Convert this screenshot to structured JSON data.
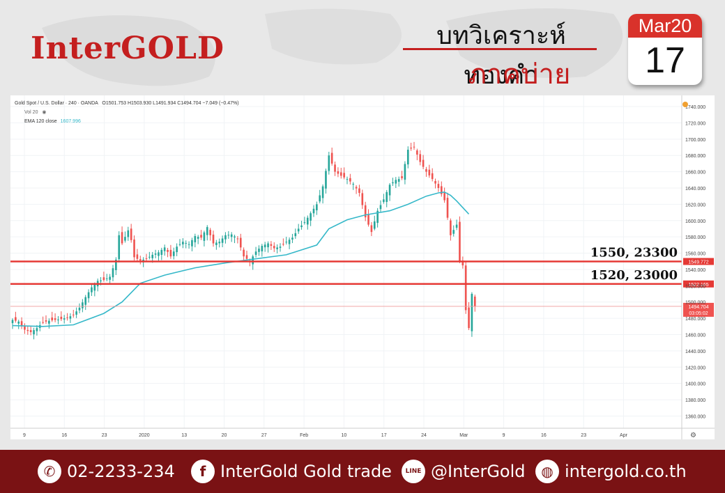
{
  "header": {
    "brand": "InterGOLD",
    "title_line1": "บทวิเคราะห์ทองคำ",
    "title_line2": "ภาคบ่าย",
    "calendar_month": "Mar20",
    "calendar_day": "17"
  },
  "legend": {
    "symbol": "Gold Spot / U.S. Dollar · 240 · OANDA",
    "ohlc": "O1501.753 H1503.930 L1491.934 C1494.704 −7.049 (−0.47%)",
    "volume": "Vol 20",
    "ema_label": "EMA 120 close",
    "ema_value": "1607.996"
  },
  "chart_data": {
    "type": "candlestick",
    "x_ticks": [
      "9",
      "16",
      "23",
      "2020",
      "13",
      "20",
      "27",
      "Feb",
      "10",
      "17",
      "24",
      "Mar",
      "9",
      "16",
      "23",
      "Apr"
    ],
    "y_ticks": [
      "1740.000",
      "1720.000",
      "1700.000",
      "1680.000",
      "1660.000",
      "1640.000",
      "1620.000",
      "1600.000",
      "1580.000",
      "1560.000",
      "1540.000",
      "1520.000",
      "1500.000",
      "1480.000",
      "1460.000",
      "1440.000",
      "1420.000",
      "1400.000",
      "1380.000",
      "1360.000"
    ],
    "ylim": [
      1345,
      1752
    ],
    "close_path": [
      [
        0,
        1478
      ],
      [
        2,
        1476
      ],
      [
        4,
        1466
      ],
      [
        6,
        1463
      ],
      [
        8,
        1468
      ],
      [
        10,
        1475
      ],
      [
        12,
        1477
      ],
      [
        14,
        1478
      ],
      [
        16,
        1479
      ],
      [
        18,
        1481
      ],
      [
        20,
        1484
      ],
      [
        22,
        1493
      ],
      [
        24,
        1506
      ],
      [
        26,
        1518
      ],
      [
        28,
        1526
      ],
      [
        30,
        1527
      ],
      [
        32,
        1531
      ],
      [
        34,
        1552
      ],
      [
        35,
        1582
      ],
      [
        36,
        1572
      ],
      [
        38,
        1588
      ],
      [
        39,
        1576
      ],
      [
        40,
        1555
      ],
      [
        42,
        1551
      ],
      [
        44,
        1553
      ],
      [
        46,
        1558
      ],
      [
        48,
        1561
      ],
      [
        50,
        1567
      ],
      [
        52,
        1556
      ],
      [
        54,
        1568
      ],
      [
        56,
        1574
      ],
      [
        58,
        1571
      ],
      [
        60,
        1581
      ],
      [
        62,
        1579
      ],
      [
        64,
        1592
      ],
      [
        66,
        1572
      ],
      [
        68,
        1574
      ],
      [
        70,
        1582
      ],
      [
        72,
        1583
      ],
      [
        74,
        1578
      ],
      [
        76,
        1556
      ],
      [
        78,
        1550
      ],
      [
        80,
        1562
      ],
      [
        82,
        1569
      ],
      [
        84,
        1572
      ],
      [
        86,
        1566
      ],
      [
        88,
        1568
      ],
      [
        90,
        1574
      ],
      [
        92,
        1579
      ],
      [
        94,
        1590
      ],
      [
        96,
        1598
      ],
      [
        98,
        1609
      ],
      [
        100,
        1620
      ],
      [
        102,
        1642
      ],
      [
        104,
        1680
      ],
      [
        106,
        1660
      ],
      [
        108,
        1655
      ],
      [
        110,
        1651
      ],
      [
        112,
        1645
      ],
      [
        114,
        1634
      ],
      [
        116,
        1604
      ],
      [
        118,
        1586
      ],
      [
        120,
        1612
      ],
      [
        122,
        1626
      ],
      [
        124,
        1644
      ],
      [
        126,
        1650
      ],
      [
        128,
        1652
      ],
      [
        130,
        1687
      ],
      [
        132,
        1690
      ],
      [
        134,
        1672
      ],
      [
        136,
        1660
      ],
      [
        138,
        1651
      ],
      [
        140,
        1640
      ],
      [
        142,
        1625
      ],
      [
        144,
        1582
      ],
      [
        146,
        1595
      ],
      [
        147,
        1550
      ],
      [
        148,
        1545
      ],
      [
        149,
        1490
      ],
      [
        150,
        1468
      ],
      [
        151,
        1510
      ],
      [
        152,
        1494.7
      ]
    ],
    "ema": {
      "name": "EMA 120 close",
      "points": [
        [
          0,
          1471
        ],
        [
          10,
          1470
        ],
        [
          20,
          1472
        ],
        [
          30,
          1486
        ],
        [
          36,
          1500
        ],
        [
          42,
          1523
        ],
        [
          50,
          1533
        ],
        [
          60,
          1542
        ],
        [
          70,
          1548
        ],
        [
          80,
          1553
        ],
        [
          90,
          1558
        ],
        [
          100,
          1570
        ],
        [
          104,
          1590
        ],
        [
          110,
          1601
        ],
        [
          116,
          1607
        ],
        [
          124,
          1612
        ],
        [
          130,
          1620
        ],
        [
          136,
          1630
        ],
        [
          140,
          1634
        ],
        [
          142,
          1635
        ],
        [
          144,
          1631
        ],
        [
          146,
          1624
        ],
        [
          148,
          1616
        ],
        [
          150,
          1608
        ]
      ]
    },
    "levels": [
      {
        "price": 1549.772,
        "label": "1550, 23300",
        "price_label": "1549.772"
      },
      {
        "price": 1522.165,
        "label": "1520, 23000",
        "price_label": "1522.165"
      }
    ],
    "current": {
      "price": 1494.704,
      "price_label": "1494.704",
      "countdown": "03:05:02"
    }
  },
  "footer": {
    "phone": "02-2233-234",
    "facebook": "InterGold Gold trade",
    "line": "@InterGold",
    "website": "intergold.co.th"
  },
  "colors": {
    "brand_red": "#c41f1f",
    "footer_red": "#7a1214",
    "ema": "#35b8c9",
    "up": "#26a69a",
    "down": "#ef5350"
  }
}
